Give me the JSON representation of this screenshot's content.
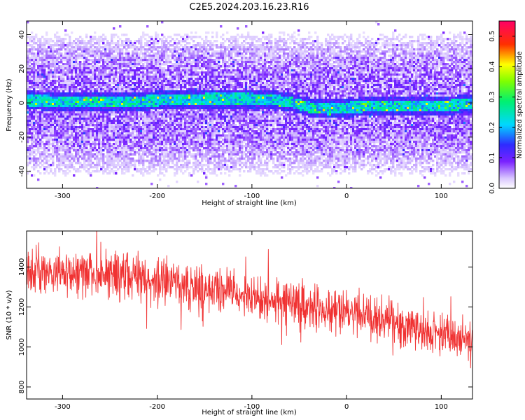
{
  "title": "C2E5.2024.203.16.23.R16",
  "colors": {
    "snr_line": "#f03232",
    "background": "#ffffff",
    "axis": "#000000"
  },
  "chart_data": [
    {
      "type": "heatmap",
      "xlabel": "Height of straight line (km)",
      "ylabel": "Frequency (Hz)",
      "xlim": [
        -338,
        133
      ],
      "ylim": [
        -50,
        48
      ],
      "xticks": [
        -300,
        -200,
        -100,
        0,
        100
      ],
      "yticks": [
        40,
        20,
        0,
        -20,
        -40
      ],
      "grid": false,
      "ridge": {
        "description_points_x": [
          -338,
          -250,
          -150,
          -100,
          -80,
          -60,
          -40,
          -20,
          0,
          50,
          100,
          133
        ],
        "frequency_hz": [
          2,
          1,
          3,
          3,
          2.5,
          1,
          -2,
          -3,
          -2,
          -1,
          -1,
          0
        ]
      },
      "colorbar": {
        "label": "Normalized spectral amplitude",
        "range": [
          0.0,
          0.55
        ],
        "ticks": [
          0.0,
          0.1,
          0.2,
          0.3,
          0.4,
          0.5
        ],
        "colormap": "purple-blue-cyan-green-yellow-red-magenta"
      }
    },
    {
      "type": "line",
      "xlabel": "Height of straight line (km)",
      "ylabel": "SNR (10 * v/v)",
      "xlim": [
        -338,
        133
      ],
      "ylim": [
        740,
        1580
      ],
      "xticks": [
        -300,
        -200,
        -100,
        0,
        100
      ],
      "yticks": [
        800,
        1000,
        1200,
        1400
      ],
      "grid": false,
      "series": [
        {
          "x": [
            -338,
            -300,
            -250,
            -200,
            -150,
            -100,
            -50,
            0,
            50,
            100,
            133
          ],
          "y": [
            1380,
            1370,
            1360,
            1330,
            1290,
            1245,
            1205,
            1165,
            1115,
            1060,
            1035
          ]
        }
      ]
    }
  ]
}
